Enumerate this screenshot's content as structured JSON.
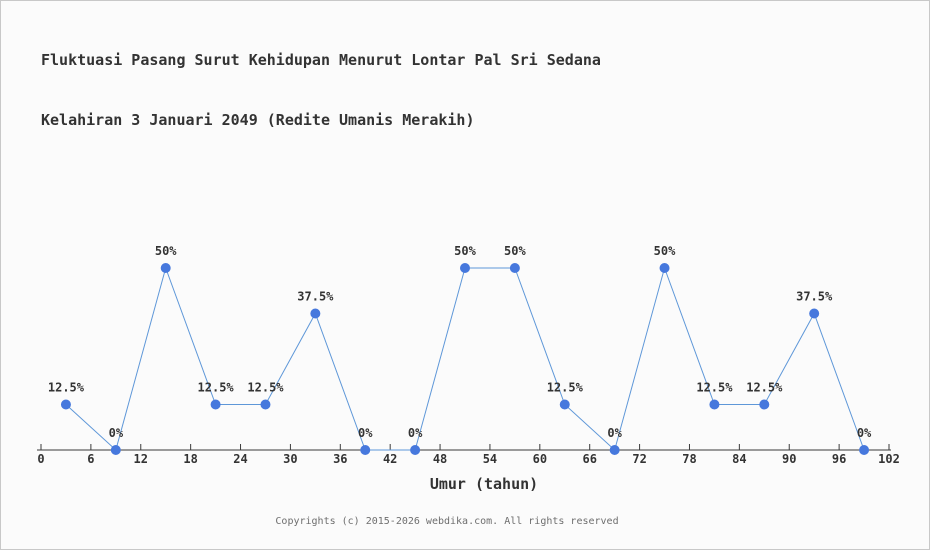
{
  "title": {
    "line1": "Fluktuasi Pasang Surut Kehidupan Menurut Lontar Pal Sri Sedana",
    "line2": "Kelahiran 3 Januari 2049 (Redite Umanis Merakih)"
  },
  "footer": {
    "copyright": "Copyrights (c) 2015-2026 webdika.com. All rights reserved"
  },
  "chart_data": {
    "type": "line",
    "title": "Fluktuasi Pasang Surut Kehidupan Menurut Lontar Pal Sri Sedana Kelahiran 3 Januari 2049 (Redite Umanis Merakih)",
    "xlabel": "Umur (tahun)",
    "ylabel": "",
    "x": [
      3,
      9,
      15,
      21,
      27,
      33,
      39,
      45,
      51,
      57,
      63,
      69,
      75,
      81,
      87,
      93,
      99
    ],
    "values": [
      12.5,
      0,
      50,
      12.5,
      12.5,
      37.5,
      0,
      0,
      50,
      50,
      12.5,
      0,
      50,
      12.5,
      12.5,
      37.5,
      0
    ],
    "point_labels": [
      "12.5%",
      "0%",
      "50%",
      "12.5%",
      "12.5%",
      "37.5%",
      "0%",
      "0%",
      "50%",
      "50%",
      "12.5%",
      "0%",
      "50%",
      "12.5%",
      "12.5%",
      "37.5%",
      "0%"
    ],
    "x_ticks": [
      0,
      6,
      12,
      18,
      24,
      30,
      36,
      42,
      48,
      54,
      60,
      66,
      72,
      78,
      84,
      90,
      96,
      102
    ],
    "xlim": [
      0,
      102
    ],
    "ylim": [
      0,
      50
    ],
    "grid": false,
    "legend": "none",
    "colors": {
      "line": "#5e97d8",
      "marker": "#4678dd",
      "axis": "#3a3a3a",
      "text": "#333333"
    }
  }
}
